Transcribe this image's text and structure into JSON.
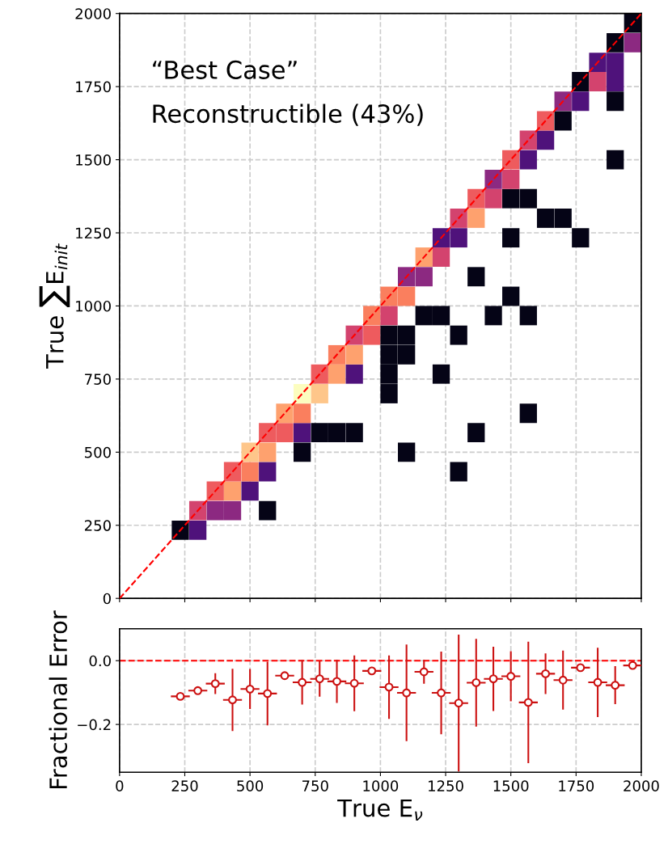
{
  "chart_data": [
    {
      "type": "scatter",
      "ylabel": "True ∑E$_{init}$",
      "annotations": [
        "“Best Case”",
        "Reconstructible (43%)"
      ],
      "xlim": [
        0,
        2000
      ],
      "ylim": [
        0,
        2000
      ],
      "xticks": [
        0,
        250,
        500,
        750,
        1000,
        1250,
        1500,
        1750,
        2000
      ],
      "yticks": [
        0,
        250,
        500,
        750,
        1000,
        1250,
        1500,
        1750,
        2000
      ],
      "tick_labels": "y",
      "grid": true,
      "marker": "square",
      "x": [
        233,
        300,
        300,
        367,
        433,
        567,
        367,
        433,
        500,
        433,
        500,
        567,
        1300,
        500,
        567,
        700,
        1100,
        567,
        633,
        700,
        767,
        833,
        900,
        1367,
        633,
        700,
        1567,
        700,
        767,
        1033,
        767,
        833,
        900,
        1033,
        1233,
        833,
        900,
        1033,
        1100,
        900,
        967,
        1033,
        1100,
        1300,
        967,
        1033,
        1167,
        1233,
        1433,
        1567,
        1033,
        1100,
        1500,
        1100,
        1167,
        1367,
        1167,
        1233,
        1233,
        1300,
        1500,
        1767,
        1300,
        1367,
        1633,
        1700,
        1367,
        1433,
        1500,
        1567,
        1433,
        1500,
        1500,
        1567,
        1900,
        1567,
        1633,
        1633,
        1700,
        1700,
        1767,
        1900,
        1767,
        1833,
        1900,
        1833,
        1900,
        1900,
        1967,
        1967
      ],
      "values": [
        233,
        233,
        300,
        300,
        300,
        300,
        367,
        367,
        367,
        433,
        433,
        433,
        433,
        500,
        500,
        500,
        500,
        567,
        567,
        567,
        567,
        567,
        567,
        567,
        633,
        633,
        633,
        700,
        700,
        700,
        767,
        767,
        767,
        767,
        767,
        833,
        833,
        833,
        833,
        900,
        900,
        900,
        900,
        900,
        967,
        967,
        967,
        967,
        967,
        967,
        1033,
        1033,
        1033,
        1100,
        1100,
        1100,
        1167,
        1167,
        1233,
        1233,
        1233,
        1233,
        1300,
        1300,
        1300,
        1300,
        1367,
        1367,
        1367,
        1367,
        1433,
        1433,
        1500,
        1500,
        1500,
        1567,
        1567,
        1633,
        1633,
        1700,
        1700,
        1700,
        1767,
        1767,
        1767,
        1833,
        1833,
        1900,
        1900,
        1967
      ],
      "colors": [
        "#050416",
        "#4f127b",
        "#d3436e",
        "#8c2981",
        "#8c2981",
        "#050416",
        "#ee5b5e",
        "#fea16e",
        "#4f127b",
        "#ee5b5e",
        "#fa7f5e",
        "#4f127b",
        "#050416",
        "#fec68a",
        "#fea16e",
        "#050416",
        "#050416",
        "#ee5b5e",
        "#ee5b5e",
        "#4f127b",
        "#050416",
        "#050416",
        "#050416",
        "#050416",
        "#fea16e",
        "#fa7f5e",
        "#050416",
        "#fcfdbf",
        "#fec68a",
        "#050416",
        "#ee5b5e",
        "#fea16e",
        "#4f127b",
        "#050416",
        "#050416",
        "#fa7f5e",
        "#fea16e",
        "#050416",
        "#050416",
        "#d3436e",
        "#ee5b5e",
        "#050416",
        "#050416",
        "#050416",
        "#fa7f5e",
        "#d3436e",
        "#050416",
        "#050416",
        "#050416",
        "#050416",
        "#fa7f5e",
        "#fa7f5e",
        "#050416",
        "#8c2981",
        "#8c2981",
        "#050416",
        "#fea16e",
        "#d3436e",
        "#4f127b",
        "#4f127b",
        "#050416",
        "#050416",
        "#d3436e",
        "#fea16e",
        "#050416",
        "#050416",
        "#ee5b5e",
        "#d3436e",
        "#050416",
        "#050416",
        "#8c2981",
        "#d3436e",
        "#ee5b5e",
        "#4f127b",
        "#050416",
        "#d3436e",
        "#4f127b",
        "#ee5b5e",
        "#050416",
        "#8c2981",
        "#4f127b",
        "#050416",
        "#050416",
        "#d3436e",
        "#4f127b",
        "#4f127b",
        "#4f127b",
        "#050416",
        "#8c2981",
        "#050416"
      ],
      "series": [
        {
          "type": "line",
          "x": [
            0,
            2000
          ],
          "values": [
            0,
            2000
          ],
          "color": "#ff0000",
          "line_style": "dashed",
          "marker": "none"
        }
      ]
    },
    {
      "type": "scatter",
      "xlabel": "True E$_{ν}$",
      "ylabel": "Fractional Error",
      "xlim": [
        0,
        2000
      ],
      "ylim": [
        -0.35,
        0.1
      ],
      "xticks": [
        0,
        250,
        500,
        750,
        1000,
        1250,
        1500,
        1750,
        2000
      ],
      "yticks": [
        {
          "value": -0.2,
          "label": "−0.2"
        },
        {
          "value": 0,
          "label": "0.0"
        }
      ],
      "grid": true,
      "marker": "circle",
      "color": "#cc1111",
      "x": [
        233,
        300,
        367,
        433,
        500,
        567,
        633,
        700,
        767,
        833,
        900,
        967,
        1033,
        1100,
        1167,
        1233,
        1300,
        1367,
        1433,
        1500,
        1567,
        1633,
        1700,
        1767,
        1833,
        1900,
        1967
      ],
      "values": [
        -0.112,
        -0.094,
        -0.072,
        -0.123,
        -0.089,
        -0.103,
        -0.047,
        -0.068,
        -0.057,
        -0.065,
        -0.071,
        -0.032,
        -0.083,
        -0.101,
        -0.035,
        -0.101,
        -0.133,
        -0.069,
        -0.057,
        -0.049,
        -0.131,
        -0.041,
        -0.061,
        -0.022,
        -0.068,
        -0.077,
        -0.015
      ],
      "errors": [
        null,
        null,
        0.03,
        0.095,
        0.06,
        0.097,
        null,
        0.067,
        0.053,
        0.065,
        0.085,
        null,
        0.097,
        0.149,
        0.035,
        0.127,
        0.212,
        0.135,
        0.098,
        0.076,
        0.188,
        0.061,
        0.09,
        null,
        0.106,
        0.057,
        null
      ],
      "xerrors": [
        33,
        33,
        33,
        33,
        33,
        33,
        33,
        33,
        33,
        33,
        33,
        33,
        33,
        33,
        33,
        33,
        33,
        33,
        33,
        33,
        33,
        33,
        33,
        33,
        33,
        33,
        33
      ],
      "ref_lines": [
        {
          "axis": "y",
          "value": 0,
          "color": "#ff0000",
          "line_style": "dashed"
        }
      ]
    }
  ]
}
